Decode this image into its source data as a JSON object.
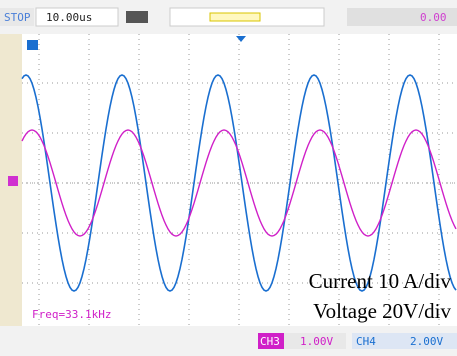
{
  "status_bar": {
    "state": "STOP",
    "timebase": "10.00us",
    "trigger_level": "0.00"
  },
  "screen": {
    "frequency": "Freq=33.1kHz",
    "annotations": [
      "Current 10 A/div",
      "Voltage 20V/div"
    ]
  },
  "channels": [
    {
      "name": "CH3",
      "scale": "1.00V"
    },
    {
      "name": "CH4",
      "scale": "2.00V"
    }
  ]
}
